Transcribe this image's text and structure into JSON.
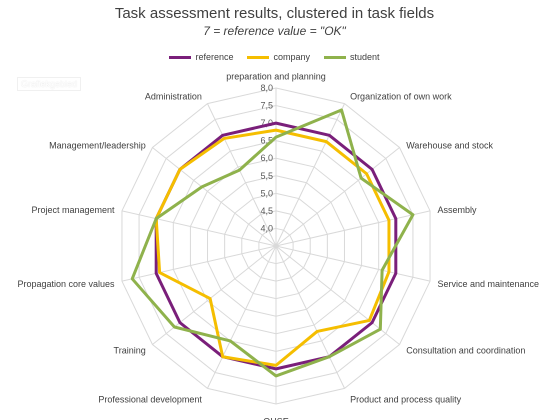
{
  "watermark": {
    "text": "Grafiekgebied"
  },
  "chart_data": {
    "type": "radar",
    "title": "Task assessment results, clustered in task fields",
    "subtitle": "7 = reference value = \"OK\"",
    "legend_position": "top",
    "categories": [
      "preparation and planning",
      "Organization of own work",
      "Warehouse and stock",
      "Assembly",
      "Service and maintenance",
      "Consultation and coordination",
      "Product and process quality",
      "QHSE",
      "Professional development",
      "Training",
      "Propagation core values",
      "Project management",
      "Management/leadership",
      "Administration"
    ],
    "r_range": [
      3.5,
      8.0
    ],
    "ticks": [
      "4,0",
      "4,5",
      "5,0",
      "5,5",
      "6,0",
      "6,5",
      "7,0",
      "7,5",
      "8,0"
    ],
    "tick_values": [
      4.0,
      4.5,
      5.0,
      5.5,
      6.0,
      6.5,
      7.0,
      7.5,
      8.0
    ],
    "series": [
      {
        "name": "reference",
        "color": "#7a1f7a",
        "values": [
          7.0,
          7.0,
          7.0,
          7.0,
          7.0,
          7.0,
          7.0,
          7.0,
          7.0,
          7.0,
          7.0,
          7.0,
          7.0,
          7.0
        ]
      },
      {
        "name": "company",
        "color": "#f5be00",
        "values": [
          6.8,
          6.8,
          6.8,
          6.8,
          6.8,
          6.9,
          6.2,
          6.9,
          7.0,
          5.9,
          6.9,
          7.0,
          7.0,
          6.9
        ]
      },
      {
        "name": "student",
        "color": "#8fb24c",
        "values": [
          6.6,
          7.8,
          6.6,
          7.5,
          6.6,
          7.3,
          7.0,
          7.2,
          6.5,
          7.2,
          7.7,
          7.0,
          6.2,
          5.9
        ]
      }
    ]
  }
}
